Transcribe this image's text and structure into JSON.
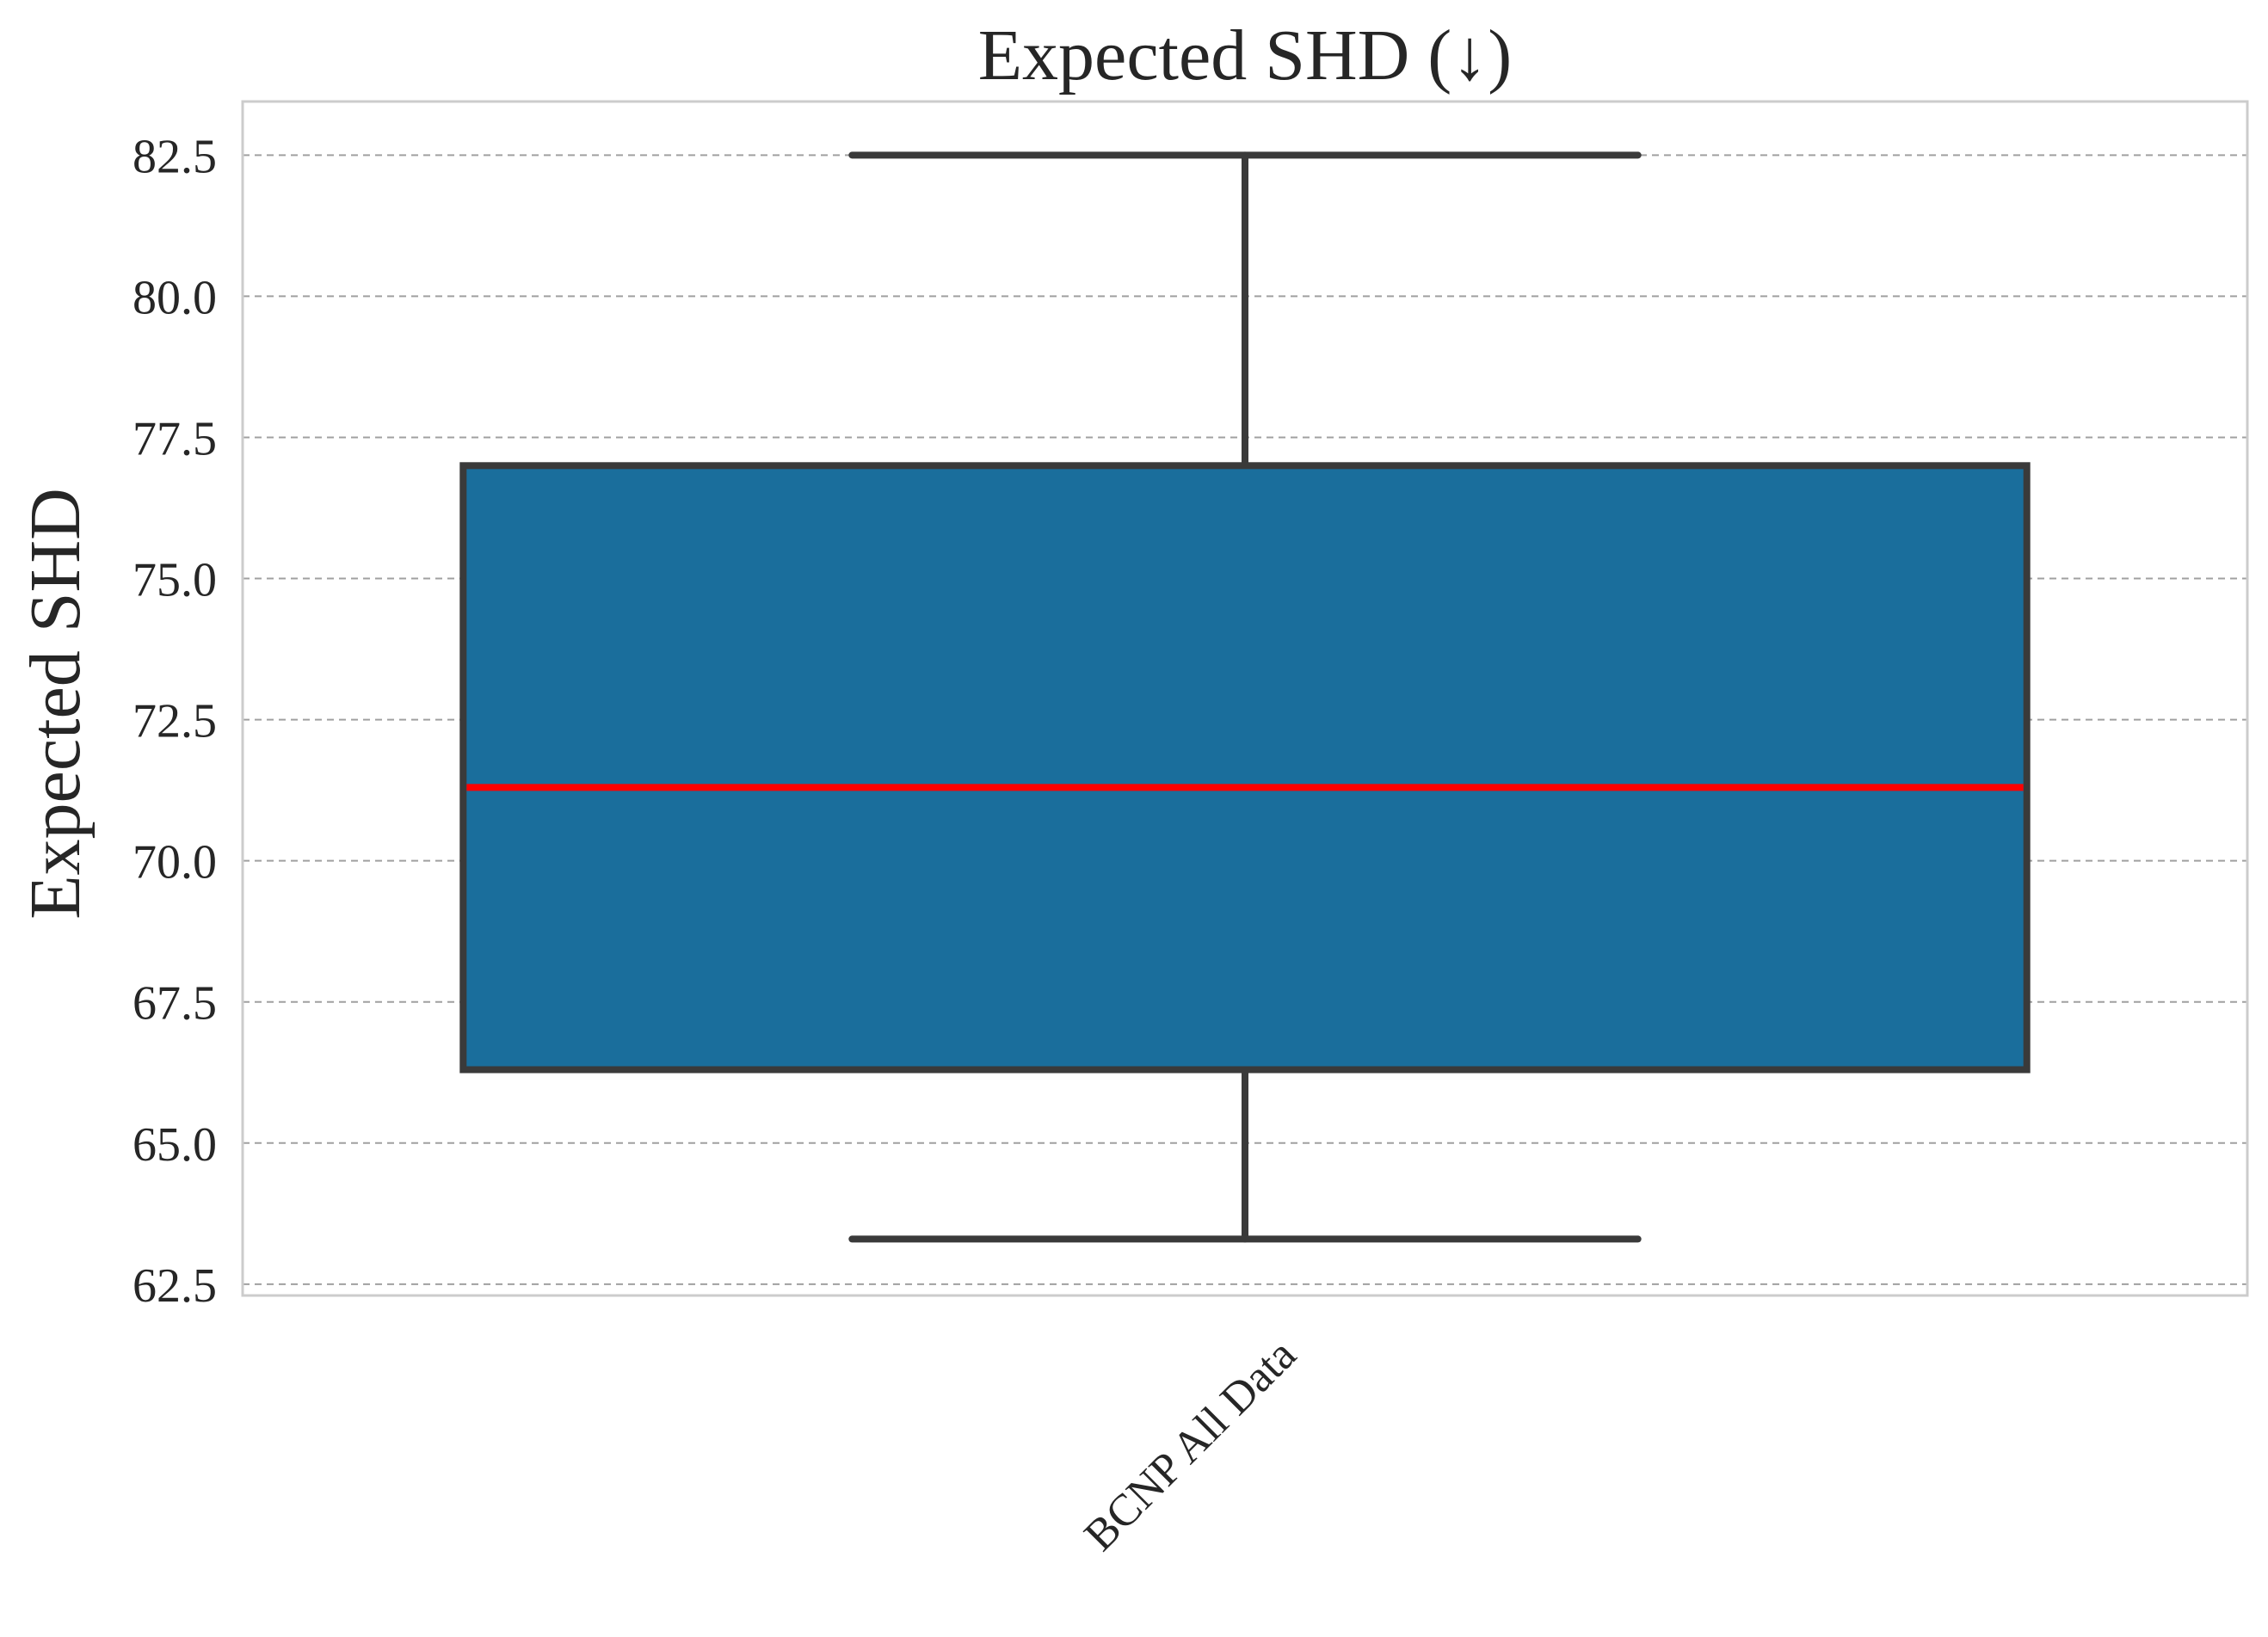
{
  "chart_data": {
    "type": "box",
    "title": "Expected SHD (↓)",
    "xlabel": "",
    "ylabel": "Expected SHD",
    "ylim": [
      62.3,
      83.45
    ],
    "yticks": [
      "62.5",
      "65.0",
      "67.5",
      "70.0",
      "72.5",
      "75.0",
      "77.5",
      "80.0",
      "82.5"
    ],
    "ytick_values": [
      62.5,
      65.0,
      67.5,
      70.0,
      72.5,
      75.0,
      77.5,
      80.0,
      82.5
    ],
    "grid": true,
    "categories": [
      "BCNP All Data"
    ],
    "boxes": [
      {
        "category": "BCNP All Data",
        "whisker_low": 63.3,
        "q1": 66.3,
        "median": 71.3,
        "q3": 77.0,
        "whisker_high": 82.5
      }
    ],
    "colors": {
      "box_fill": "#1a6e9c",
      "median": "#ff0000",
      "outline": "#3a3a3a"
    }
  }
}
